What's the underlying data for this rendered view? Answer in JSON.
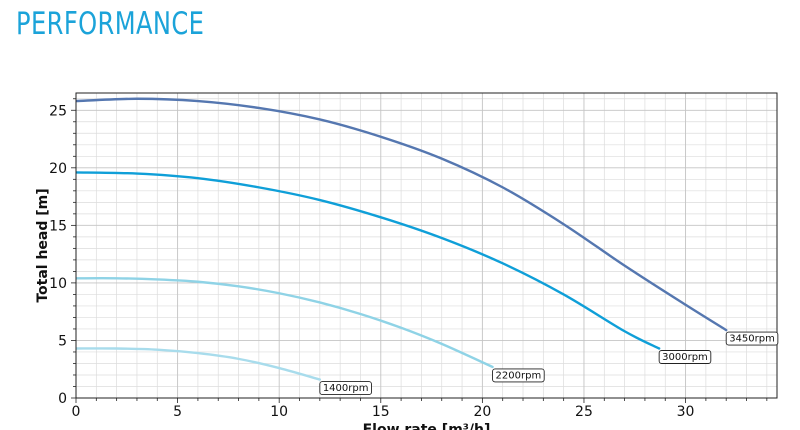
{
  "page": {
    "heading": "PERFORMANCE"
  },
  "chart_data": {
    "type": "line",
    "title": "",
    "xlabel": "Flow rate [m³/h]",
    "ylabel": "Total head [m]",
    "xlim": [
      0,
      34.5
    ],
    "ylim": [
      0,
      26.5
    ],
    "x_ticks": [
      0,
      5,
      10,
      15,
      20,
      25,
      30
    ],
    "y_ticks": [
      0,
      5,
      10,
      15,
      20,
      25
    ],
    "grid": true,
    "legend": "none",
    "series": [
      {
        "name": "3450rpm",
        "color": "#5577b0",
        "x": [
          0,
          3,
          6,
          9,
          12,
          15,
          18,
          21,
          24,
          27,
          30,
          32
        ],
        "y": [
          25.8,
          26.0,
          25.8,
          25.2,
          24.2,
          22.7,
          20.8,
          18.3,
          15.1,
          11.5,
          8.1,
          5.9
        ]
      },
      {
        "name": "3000rpm",
        "color": "#0f9fd8",
        "x": [
          0,
          3,
          6,
          9,
          12,
          15,
          18,
          21,
          24,
          27,
          28.7
        ],
        "y": [
          19.6,
          19.5,
          19.1,
          18.3,
          17.2,
          15.7,
          13.9,
          11.7,
          9.0,
          5.8,
          4.3
        ]
      },
      {
        "name": "2200rpm",
        "color": "#8fd3e6",
        "x": [
          0,
          2,
          4,
          6,
          8,
          10,
          12,
          14,
          16,
          18,
          20.5
        ],
        "y": [
          10.4,
          10.4,
          10.3,
          10.1,
          9.7,
          9.1,
          8.3,
          7.3,
          6.1,
          4.7,
          2.7
        ]
      },
      {
        "name": "1400rpm",
        "color": "#a8dcec",
        "x": [
          0,
          2,
          4,
          6,
          8,
          10,
          12
        ],
        "y": [
          4.3,
          4.3,
          4.2,
          3.9,
          3.4,
          2.6,
          1.6
        ]
      }
    ]
  }
}
